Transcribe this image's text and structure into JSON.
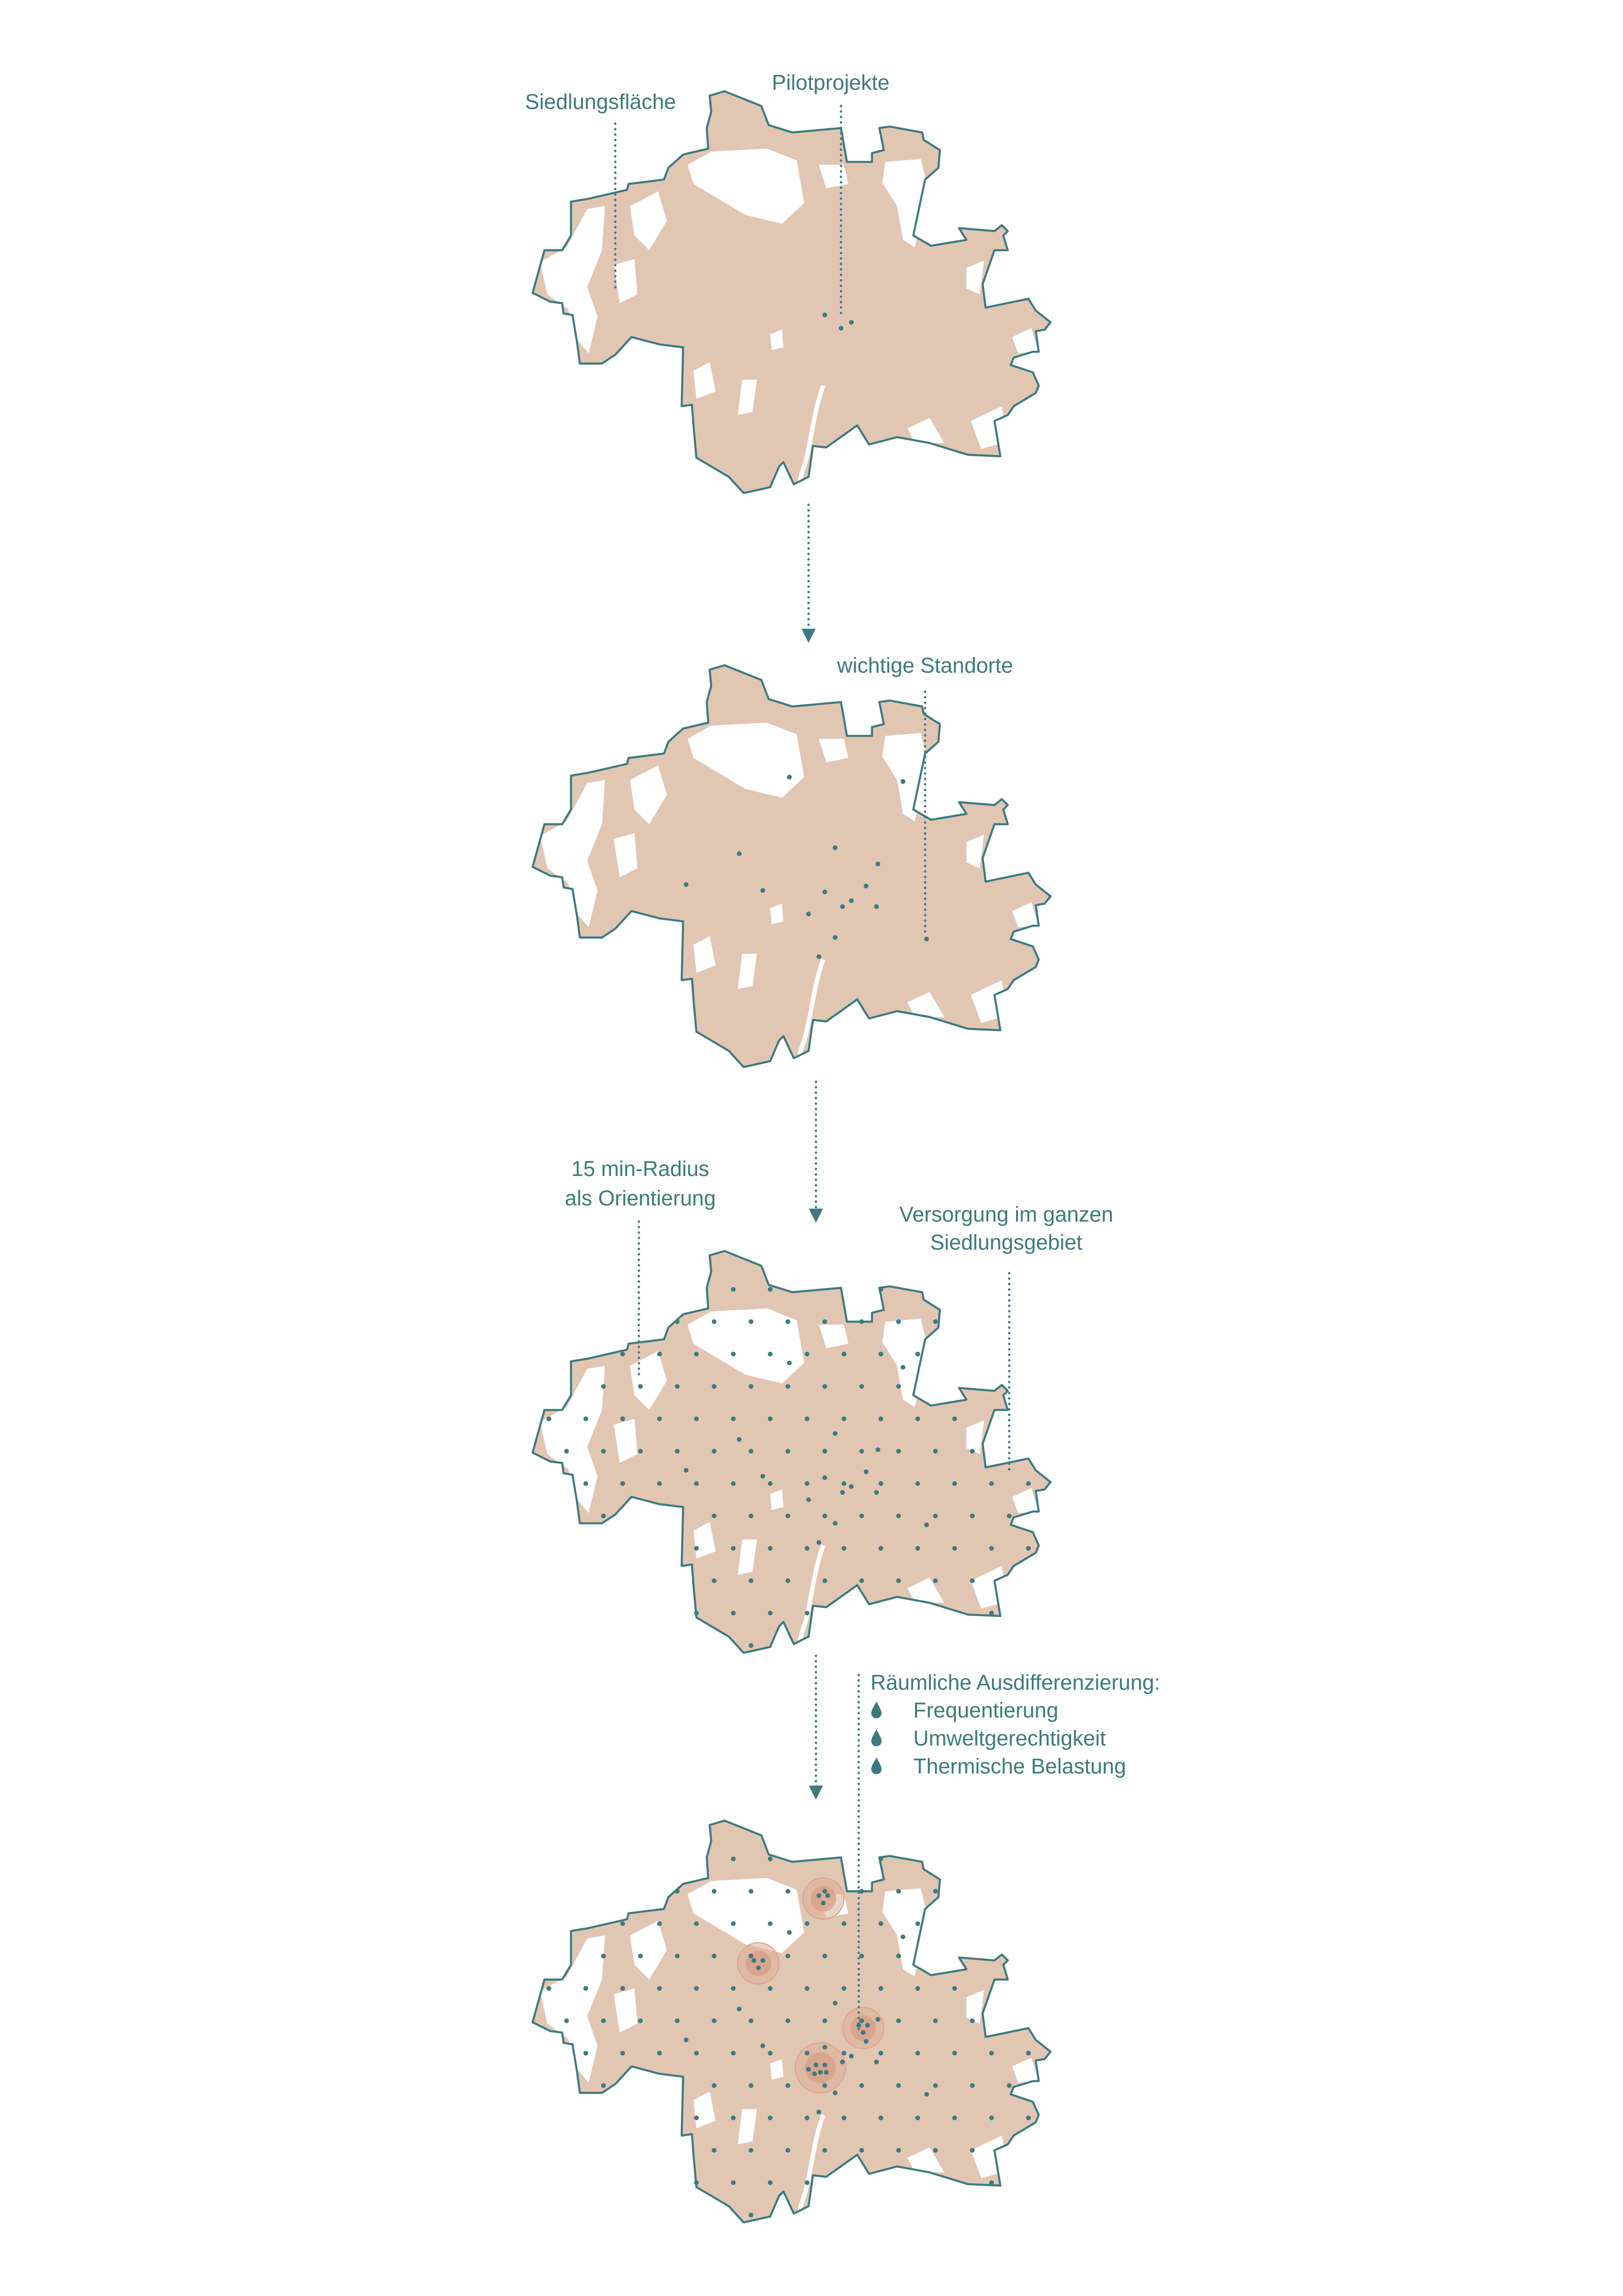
{
  "colors": {
    "accent": "#3d7a7f",
    "settlement_fill": "#e2c6b4",
    "radius_ring": "#d9a890",
    "background": "#ffffff"
  },
  "steps": [
    {
      "labels": [
        "Siedlungsfläche",
        "Pilotprojekte"
      ]
    },
    {
      "labels": [
        "wichtige Standorte"
      ]
    },
    {
      "labels": [
        "15 min-Radius",
        "als Orientierung",
        "Versorgung im ganzen",
        "Siedlungsgebiet"
      ]
    },
    {
      "labels": []
    }
  ],
  "legend": {
    "title": "Räumliche Ausdifferenzierung:",
    "icon": "drop-icon",
    "items": [
      "Frequentierung",
      "Umweltgerechtigkeit",
      "Thermische Belastung"
    ]
  }
}
